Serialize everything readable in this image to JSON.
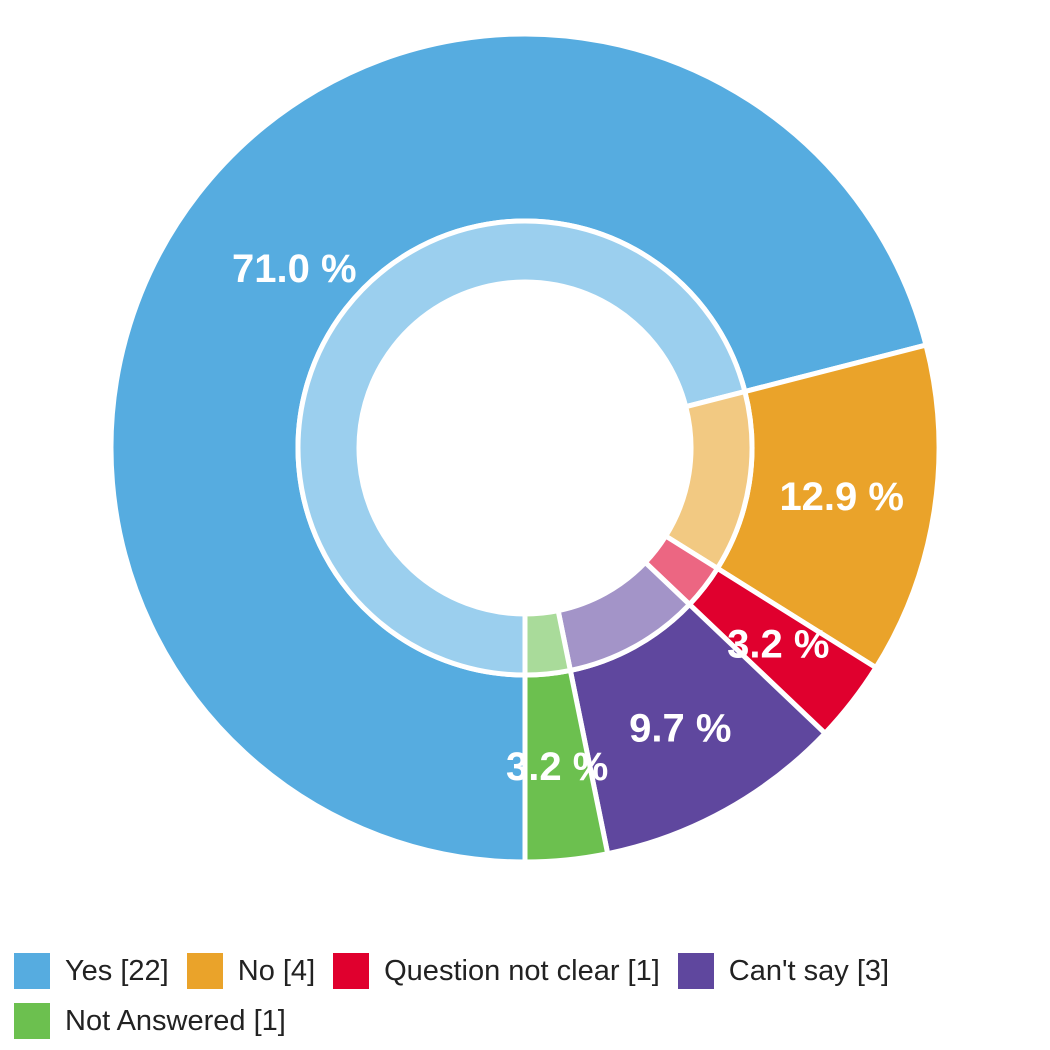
{
  "chart_data": {
    "type": "pie",
    "variant": "donut",
    "title": "",
    "slices": [
      {
        "label": "Yes",
        "count": 22,
        "percent_label": "71.0 %",
        "value": 71.0,
        "color": "#56ACE0",
        "inner_color": "#9BCFEE"
      },
      {
        "label": "No",
        "count": 4,
        "percent_label": "12.9 %",
        "value": 12.9,
        "color": "#EAA32A",
        "inner_color": "#F2C982"
      },
      {
        "label": "Question not clear",
        "count": 1,
        "percent_label": "3.2 %",
        "value": 3.2,
        "color": "#E0002E",
        "inner_color": "#EC6682"
      },
      {
        "label": "Can't say",
        "count": 3,
        "percent_label": "9.7 %",
        "value": 9.7,
        "color": "#5F479E",
        "inner_color": "#A394C8"
      },
      {
        "label": "Not Answered",
        "count": 1,
        "percent_label": "3.2 %",
        "value": 3.2,
        "color": "#6CC04F",
        "inner_color": "#A9DB9A"
      }
    ],
    "legend_placement": "bottom",
    "start": "bottom-center",
    "direction": "clockwise"
  },
  "legend": {
    "items": [
      {
        "text": "Yes [22]",
        "color": "#56ACE0"
      },
      {
        "text": "No [4]",
        "color": "#EAA32A"
      },
      {
        "text": "Question not clear [1]",
        "color": "#E0002E"
      },
      {
        "text": "Can't say [3]",
        "color": "#5F479E"
      },
      {
        "text": "Not Answered [1]",
        "color": "#6CC04F"
      }
    ]
  }
}
